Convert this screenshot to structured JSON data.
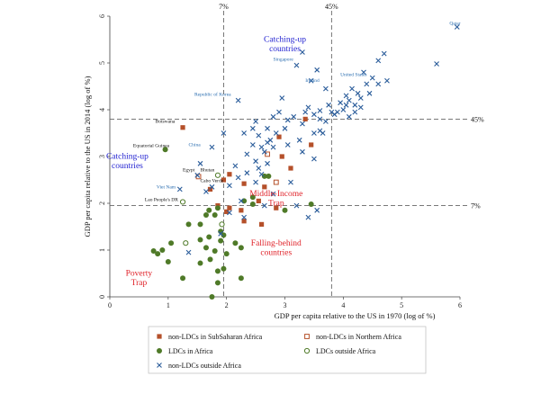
{
  "chart_data": {
    "type": "scatter",
    "xlabel": "GDP per capita relative to the US in 1970 (log of %)",
    "ylabel": "GDP per capita relative to the US in 2014 (log of %)",
    "xlim": [
      0,
      6
    ],
    "ylim": [
      0,
      6
    ],
    "xticks": [
      "0",
      "1",
      "2",
      "3",
      "4",
      "5",
      "6"
    ],
    "yticks": [
      "0",
      "1",
      "2",
      "3",
      "4",
      "5",
      "6"
    ],
    "reference_lines": {
      "vertical": [
        {
          "x": 1.95,
          "label": "7%"
        },
        {
          "x": 3.8,
          "label": "45%"
        }
      ],
      "horizontal": [
        {
          "y": 3.8,
          "label": "45%"
        },
        {
          "y": 1.95,
          "label": "7%"
        }
      ]
    },
    "annotations": [
      {
        "text": "Catching-up countries",
        "x": 3.0,
        "y": 5.45,
        "color": "#1f1fd0"
      },
      {
        "text": "Catching-up countries",
        "x": 0.3,
        "y": 2.95,
        "color": "#1f1fd0"
      },
      {
        "text": "Middle-Income Trap",
        "x": 2.85,
        "y": 2.15,
        "color": "#e0232a"
      },
      {
        "text": "Falling-behind countries",
        "x": 2.85,
        "y": 1.1,
        "color": "#e0232a"
      },
      {
        "text": "Poverty Trap",
        "x": 0.5,
        "y": 0.45,
        "color": "#e0232a"
      }
    ],
    "point_labels": [
      {
        "text": "Qatar",
        "x": 5.82,
        "y": 5.82
      },
      {
        "text": "Singapore",
        "x": 2.8,
        "y": 5.05
      },
      {
        "text": "Ireland",
        "x": 3.35,
        "y": 4.6
      },
      {
        "text": "United States",
        "x": 3.95,
        "y": 4.72
      },
      {
        "text": "Republic of Korea",
        "x": 1.45,
        "y": 4.3
      },
      {
        "text": "China",
        "x": 1.35,
        "y": 3.22
      },
      {
        "text": "Botswana",
        "x": 0.78,
        "y": 3.72
      },
      {
        "text": "Equatorial Guinea",
        "x": 0.4,
        "y": 3.2
      },
      {
        "text": "Egypt",
        "x": 1.25,
        "y": 2.68
      },
      {
        "text": "Bhutan",
        "x": 1.55,
        "y": 2.68
      },
      {
        "text": "Cabo Verde",
        "x": 1.55,
        "y": 2.45
      },
      {
        "text": "Viet Nam",
        "x": 0.8,
        "y": 2.32
      },
      {
        "text": "Lao People's DR",
        "x": 0.6,
        "y": 2.05
      }
    ],
    "series": [
      {
        "name": "non-LDCs in SubSaharan Africa",
        "marker": "square-filled",
        "color": "#b5502a",
        "points": [
          [
            1.25,
            3.62
          ],
          [
            3.35,
            3.8
          ],
          [
            2.9,
            3.42
          ],
          [
            3.45,
            3.25
          ],
          [
            2.95,
            3.0
          ],
          [
            2.05,
            2.62
          ],
          [
            2.3,
            2.42
          ],
          [
            2.65,
            2.35
          ],
          [
            1.95,
            2.5
          ],
          [
            1.72,
            2.3
          ],
          [
            2.55,
            2.05
          ],
          [
            2.85,
            1.9
          ],
          [
            2.05,
            1.9
          ],
          [
            2.25,
            1.85
          ],
          [
            1.85,
            1.95
          ],
          [
            2.0,
            1.82
          ],
          [
            2.3,
            1.62
          ],
          [
            2.6,
            1.55
          ],
          [
            3.1,
            2.75
          ]
        ]
      },
      {
        "name": "non-LDCs in Northern Africa",
        "marker": "square-open",
        "color": "#b5502a",
        "points": [
          [
            2.7,
            3.05
          ],
          [
            1.52,
            2.57
          ],
          [
            2.85,
            2.45
          ]
        ]
      },
      {
        "name": "LDCs in Africa",
        "marker": "circle-filled",
        "color": "#4f7a28",
        "points": [
          [
            0.95,
            3.15
          ],
          [
            2.3,
            2.05
          ],
          [
            2.45,
            2.13
          ],
          [
            2.65,
            2.58
          ],
          [
            2.72,
            2.58
          ],
          [
            3.45,
            1.98
          ],
          [
            3.0,
            1.85
          ],
          [
            2.45,
            1.98
          ],
          [
            1.85,
            1.9
          ],
          [
            1.7,
            1.85
          ],
          [
            1.8,
            1.75
          ],
          [
            1.65,
            1.75
          ],
          [
            1.55,
            1.55
          ],
          [
            1.35,
            1.55
          ],
          [
            1.9,
            1.4
          ],
          [
            1.95,
            1.32
          ],
          [
            1.7,
            1.28
          ],
          [
            1.55,
            1.22
          ],
          [
            1.9,
            1.2
          ],
          [
            2.15,
            1.15
          ],
          [
            2.25,
            1.05
          ],
          [
            1.65,
            1.05
          ],
          [
            1.8,
            0.98
          ],
          [
            2.0,
            0.92
          ],
          [
            1.05,
            1.15
          ],
          [
            0.9,
            1.0
          ],
          [
            0.75,
            0.98
          ],
          [
            0.82,
            0.92
          ],
          [
            1.0,
            0.75
          ],
          [
            1.55,
            0.72
          ],
          [
            1.72,
            0.8
          ],
          [
            1.85,
            0.55
          ],
          [
            1.95,
            0.6
          ],
          [
            1.25,
            0.4
          ],
          [
            1.85,
            0.3
          ],
          [
            2.25,
            0.4
          ],
          [
            1.75,
            0.0
          ]
        ]
      },
      {
        "name": "LDCs outside Africa",
        "marker": "circle-open",
        "color": "#4f7a28",
        "points": [
          [
            1.85,
            2.6
          ],
          [
            1.25,
            2.03
          ],
          [
            1.92,
            1.55
          ],
          [
            1.3,
            1.15
          ]
        ]
      },
      {
        "name": "non-LDCs outside Africa",
        "marker": "x",
        "color": "#2a5c9a",
        "points": [
          [
            5.95,
            5.77
          ],
          [
            5.6,
            4.98
          ],
          [
            4.6,
            5.05
          ],
          [
            4.7,
            5.2
          ],
          [
            3.3,
            5.23
          ],
          [
            3.2,
            4.95
          ],
          [
            3.55,
            4.85
          ],
          [
            3.45,
            4.62
          ],
          [
            3.7,
            4.45
          ],
          [
            4.35,
            4.8
          ],
          [
            4.5,
            4.68
          ],
          [
            4.75,
            4.62
          ],
          [
            4.6,
            4.55
          ],
          [
            4.4,
            4.55
          ],
          [
            4.25,
            4.35
          ],
          [
            4.3,
            4.25
          ],
          [
            4.45,
            4.35
          ],
          [
            4.15,
            4.45
          ],
          [
            4.05,
            4.3
          ],
          [
            4.1,
            4.2
          ],
          [
            4.2,
            4.1
          ],
          [
            4.3,
            4.05
          ],
          [
            4.05,
            4.1
          ],
          [
            3.95,
            4.15
          ],
          [
            4.0,
            4.0
          ],
          [
            3.9,
            3.95
          ],
          [
            4.1,
            3.85
          ],
          [
            4.2,
            3.95
          ],
          [
            3.75,
            4.1
          ],
          [
            3.8,
            3.95
          ],
          [
            3.6,
            3.98
          ],
          [
            3.5,
            3.9
          ],
          [
            3.15,
            3.85
          ],
          [
            3.05,
            3.78
          ],
          [
            2.95,
            4.25
          ],
          [
            2.2,
            4.2
          ],
          [
            3.4,
            4.05
          ],
          [
            3.3,
            3.7
          ],
          [
            2.8,
            3.85
          ],
          [
            2.5,
            3.75
          ],
          [
            2.45,
            3.6
          ],
          [
            2.7,
            3.6
          ],
          [
            2.85,
            3.5
          ],
          [
            2.3,
            3.5
          ],
          [
            2.55,
            3.45
          ],
          [
            2.75,
            3.35
          ],
          [
            2.6,
            3.2
          ],
          [
            2.45,
            3.25
          ],
          [
            2.35,
            3.05
          ],
          [
            2.65,
            3.1
          ],
          [
            2.8,
            3.2
          ],
          [
            3.05,
            3.25
          ],
          [
            3.25,
            3.35
          ],
          [
            3.5,
            3.5
          ],
          [
            3.3,
            3.1
          ],
          [
            2.5,
            2.9
          ],
          [
            2.7,
            2.85
          ],
          [
            2.55,
            2.75
          ],
          [
            2.35,
            2.65
          ],
          [
            2.2,
            2.55
          ],
          [
            2.15,
            2.8
          ],
          [
            2.6,
            2.62
          ],
          [
            3.5,
            2.95
          ],
          [
            3.6,
            3.8
          ],
          [
            3.65,
            3.5
          ],
          [
            1.75,
            3.2
          ],
          [
            1.95,
            3.5
          ],
          [
            1.55,
            2.85
          ],
          [
            1.5,
            2.6
          ],
          [
            1.75,
            2.35
          ],
          [
            1.2,
            2.3
          ],
          [
            2.05,
            2.38
          ],
          [
            2.5,
            2.45
          ],
          [
            3.1,
            2.45
          ],
          [
            2.8,
            2.2
          ],
          [
            2.25,
            2.05
          ],
          [
            2.65,
            1.95
          ],
          [
            3.2,
            1.95
          ],
          [
            3.55,
            1.85
          ],
          [
            3.4,
            1.7
          ],
          [
            2.3,
            1.7
          ],
          [
            1.9,
            1.35
          ],
          [
            1.35,
            0.95
          ],
          [
            2.05,
            1.8
          ],
          [
            1.65,
            2.25
          ],
          [
            3.85,
            3.9
          ],
          [
            3.6,
            3.55
          ],
          [
            3.7,
            3.75
          ],
          [
            3.0,
            3.6
          ],
          [
            2.7,
            3.3
          ],
          [
            2.9,
            3.95
          ],
          [
            3.35,
            3.95
          ]
        ]
      }
    ],
    "legend": {
      "placement": "bottom",
      "items": [
        {
          "label": "non-LDCs in SubSaharan Africa",
          "marker": "square-filled"
        },
        {
          "label": "non-LDCs in Northern Africa",
          "marker": "square-open"
        },
        {
          "label": "LDCs in Africa",
          "marker": "circle-filled"
        },
        {
          "label": "LDCs outside Africa",
          "marker": "circle-open"
        },
        {
          "label": "non-LDCs outside Africa",
          "marker": "x"
        }
      ]
    }
  }
}
